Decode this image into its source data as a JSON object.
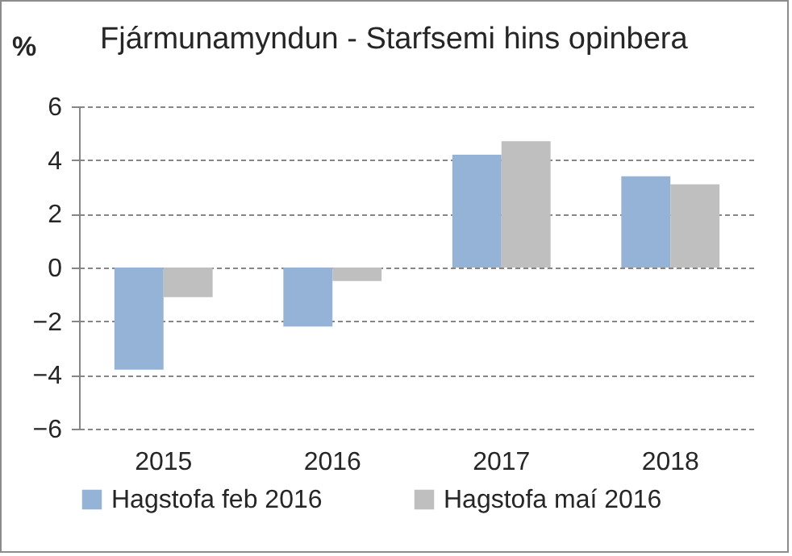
{
  "chart_data": {
    "type": "bar",
    "title": "Fjármunamyndun - Starfsemi hins opinbera",
    "ylabel": "%",
    "categories": [
      "2015",
      "2016",
      "2017",
      "2018"
    ],
    "series": [
      {
        "name": "Hagstofa feb 2016",
        "color": "#95b3d7",
        "values": [
          -3.8,
          -2.2,
          4.2,
          3.4
        ]
      },
      {
        "name": "Hagstofa maí 2016",
        "color": "#bfbfbf",
        "values": [
          -1.1,
          -0.5,
          4.7,
          3.1
        ]
      }
    ],
    "ylim": [
      -6,
      6
    ],
    "yticks": [
      -6,
      -4,
      -2,
      0,
      2,
      4,
      6
    ],
    "grid": "y",
    "legend": "bottom"
  }
}
